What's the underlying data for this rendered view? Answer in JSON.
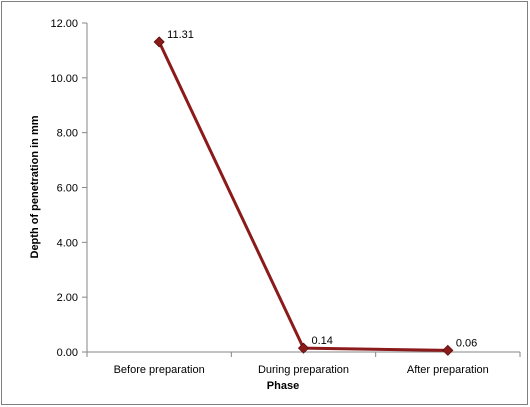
{
  "chart_data": {
    "type": "line",
    "title": "",
    "xlabel": "Phase",
    "ylabel": "Depth of penetration in mm",
    "categories": [
      "Before preparation",
      "During preparation",
      "After preparation"
    ],
    "series": [
      {
        "values": [
          11.31,
          0.14,
          0.06
        ],
        "data_labels": [
          "11.31",
          "0.14",
          "0.06"
        ],
        "color": "#8b1a1a",
        "marker": "diamond"
      }
    ],
    "ylim": [
      0,
      12
    ],
    "yticks": [
      "0.00",
      "2.00",
      "4.00",
      "6.00",
      "8.00",
      "10.00",
      "12.00"
    ],
    "grid": false,
    "legend": "none"
  }
}
